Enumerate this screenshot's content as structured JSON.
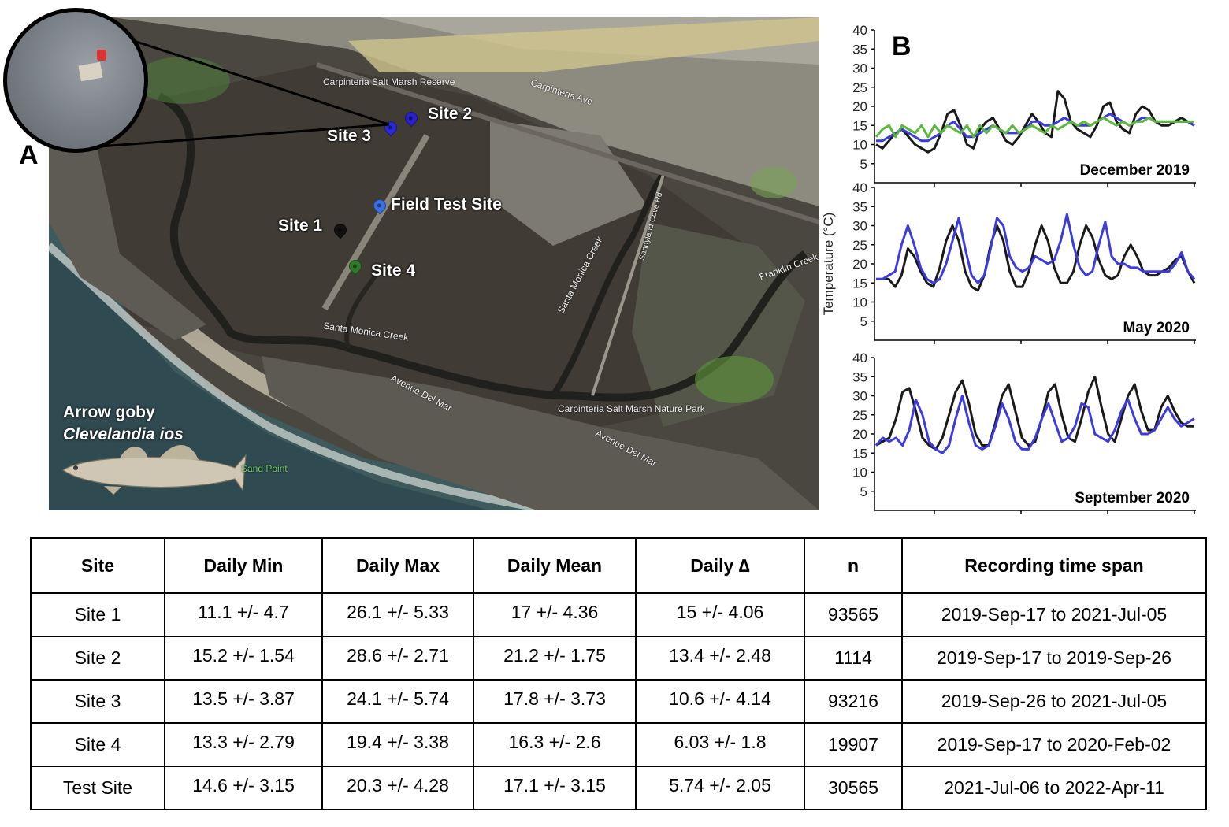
{
  "panel_a_label": "A",
  "panel_b_label": "B",
  "map": {
    "sites": [
      {
        "label": "Site 1",
        "pin_color": "#111111"
      },
      {
        "label": "Site 2",
        "pin_color": "#2a22c8"
      },
      {
        "label": "Site 3",
        "pin_color": "#2a2ad8"
      },
      {
        "label": "Site 4",
        "pin_color": "#2f7a2a"
      },
      {
        "label": "Field Test Site",
        "pin_color": "#3a6fe0"
      }
    ],
    "place_labels": [
      "Carpinteria Salt Marsh Reserve",
      "Santa Monica Creek",
      "Santa Monica Creek",
      "Avenue Del Mar",
      "Avenue Del Mar",
      "Carpinteria Salt Marsh Nature Park",
      "Carpinteria Ave",
      "Sandyland Cove Rd",
      "Franklin Creek",
      "Sand Point"
    ],
    "species_common": "Arrow goby",
    "species_latin": "Clevelandia ios"
  },
  "chart_data": [
    {
      "type": "line",
      "panel": "December 2019",
      "ylabel": "",
      "ylim": [
        0,
        40
      ],
      "yticks": [
        5,
        10,
        15,
        20,
        25,
        30,
        35,
        40
      ],
      "series": [
        {
          "color": "#1a1a1a",
          "values": [
            10,
            9,
            11,
            13,
            14,
            12,
            10,
            9,
            8,
            9,
            13,
            18,
            19,
            15,
            10,
            9,
            14,
            16,
            17,
            14,
            11,
            10,
            12,
            15,
            18,
            16,
            13,
            12,
            24,
            22,
            16,
            14,
            13,
            12,
            15,
            20,
            21,
            16,
            14,
            13,
            18,
            20,
            19,
            16,
            15,
            15,
            16,
            17,
            16,
            15
          ]
        },
        {
          "color": "#3b3be0",
          "values": [
            11,
            11,
            12,
            13,
            14,
            13,
            12,
            11,
            11,
            12,
            13,
            15,
            16,
            14,
            12,
            12,
            13,
            14,
            15,
            14,
            13,
            13,
            13,
            14,
            16,
            16,
            15,
            15,
            16,
            17,
            16,
            15,
            15,
            15,
            16,
            17,
            18,
            17,
            16,
            15,
            16,
            17,
            17,
            16,
            16,
            16,
            16,
            16,
            16,
            15
          ]
        },
        {
          "color": "#5cb83c",
          "values": [
            12,
            14,
            15,
            12,
            15,
            14,
            13,
            15,
            12,
            15,
            13,
            15,
            14,
            13,
            15,
            12,
            15,
            13,
            15,
            14,
            13,
            15,
            13,
            14,
            15,
            14,
            13,
            15,
            14,
            15,
            16,
            15,
            16,
            15,
            16,
            17,
            16,
            15,
            16,
            15,
            16,
            16,
            17,
            16,
            16,
            16,
            16,
            16,
            16,
            16
          ]
        }
      ]
    },
    {
      "type": "line",
      "panel": "May 2020",
      "ylabel": "Temperature (°C)",
      "ylim": [
        0,
        40
      ],
      "yticks": [
        5,
        10,
        15,
        20,
        25,
        30,
        35,
        40
      ],
      "series": [
        {
          "color": "#1a1a1a",
          "values": [
            16,
            16,
            16,
            14,
            17,
            24,
            22,
            18,
            15,
            14,
            19,
            26,
            30,
            26,
            18,
            14,
            13,
            17,
            25,
            30,
            26,
            18,
            14,
            14,
            18,
            25,
            30,
            26,
            19,
            15,
            15,
            18,
            25,
            30,
            27,
            21,
            17,
            16,
            17,
            22,
            25,
            22,
            18,
            17,
            17,
            18,
            19,
            21,
            22,
            18,
            15
          ]
        },
        {
          "color": "#3b3be0",
          "values": [
            16,
            16,
            17,
            18,
            25,
            30,
            25,
            19,
            16,
            15,
            16,
            20,
            26,
            32,
            24,
            17,
            15,
            17,
            24,
            32,
            30,
            22,
            19,
            18,
            19,
            22,
            21,
            20,
            21,
            26,
            33,
            25,
            19,
            17,
            18,
            25,
            31,
            22,
            20,
            20,
            19,
            19,
            18,
            18,
            18,
            18,
            18,
            20,
            23,
            18,
            16
          ]
        }
      ]
    },
    {
      "type": "line",
      "panel": "September 2020",
      "ylabel": "",
      "ylim": [
        0,
        40
      ],
      "yticks": [
        5,
        10,
        15,
        20,
        25,
        30,
        35,
        40
      ],
      "series": [
        {
          "color": "#1a1a1a",
          "values": [
            17,
            18,
            19,
            24,
            31,
            32,
            26,
            19,
            17,
            16,
            19,
            25,
            31,
            34,
            28,
            20,
            17,
            17,
            23,
            30,
            33,
            26,
            19,
            17,
            18,
            24,
            31,
            33,
            25,
            19,
            18,
            24,
            31,
            35,
            27,
            20,
            18,
            24,
            30,
            33,
            26,
            21,
            21,
            27,
            30,
            26,
            23,
            22,
            22
          ]
        },
        {
          "color": "#3b3be0",
          "values": [
            17,
            19,
            18,
            19,
            17,
            21,
            29,
            25,
            18,
            16,
            15,
            17,
            24,
            30,
            23,
            17,
            16,
            17,
            22,
            28,
            24,
            18,
            16,
            16,
            19,
            24,
            28,
            23,
            18,
            19,
            22,
            28,
            27,
            20,
            19,
            18,
            21,
            26,
            29,
            24,
            20,
            20,
            21,
            24,
            27,
            24,
            22,
            23,
            24
          ]
        }
      ]
    },
    {
      "type": "table",
      "headers": [
        "Site",
        "Daily Min",
        "Daily Max",
        "Daily Mean",
        "Daily ∆",
        "n",
        "Recording time span"
      ],
      "rows": [
        [
          "Site 1",
          "11.1 +/- 4.7",
          "26.1 +/- 5.33",
          "17 +/- 4.36",
          "15 +/- 4.06",
          "93565",
          "2019-Sep-17 to 2021-Jul-05"
        ],
        [
          "Site 2",
          "15.2 +/- 1.54",
          "28.6 +/- 2.71",
          "21.2 +/- 1.75",
          "13.4 +/- 2.48",
          "1114",
          "2019-Sep-17 to 2019-Sep-26"
        ],
        [
          "Site 3",
          "13.5 +/- 3.87",
          "24.1 +/- 5.74",
          "17.8 +/- 3.73",
          "10.6 +/- 4.14",
          "93216",
          "2019-Sep-26 to 2021-Jul-05"
        ],
        [
          "Site 4",
          "13.3 +/- 2.79",
          "19.4 +/- 3.38",
          "16.3 +/- 2.6",
          "6.03 +/- 1.8",
          "19907",
          "2019-Sep-17 to 2020-Feb-02"
        ],
        [
          "Test Site",
          "14.6 +/- 3.15",
          "20.3 +/- 4.28",
          "17.1 +/- 3.15",
          "5.74 +/- 2.05",
          "30565",
          "2021-Jul-06 to 2022-Apr-11"
        ]
      ]
    }
  ]
}
